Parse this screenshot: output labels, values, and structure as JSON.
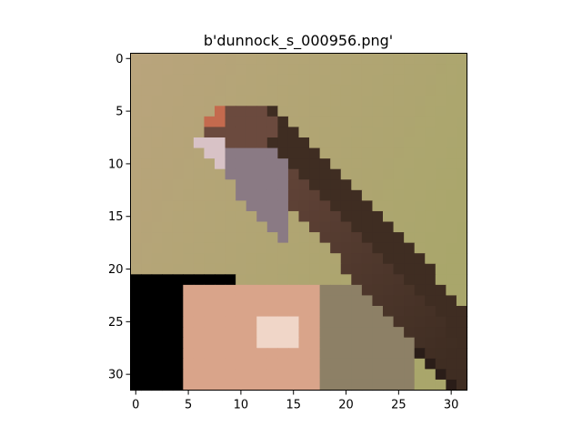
{
  "figure": {
    "title": "b'dunnock_s_000956.png'"
  },
  "image": {
    "subject": "small brown bird (dunnock) perched, pixelated 32x32",
    "grid_size": 32,
    "background_color": "#b9a47c",
    "bird_colors": {
      "head_brown": "#6b4a3e",
      "breast_gray": "#8a7a84",
      "throat_light": "#d8c2c6",
      "wing_dark": "#3f2d22",
      "perch_skin": "#d9a48a",
      "perch_gray": "#8d8066"
    }
  },
  "axes": {
    "x_ticks": [
      "0",
      "5",
      "10",
      "15",
      "20",
      "25",
      "30"
    ],
    "y_ticks": [
      "0",
      "5",
      "10",
      "15",
      "20",
      "25",
      "30"
    ]
  }
}
